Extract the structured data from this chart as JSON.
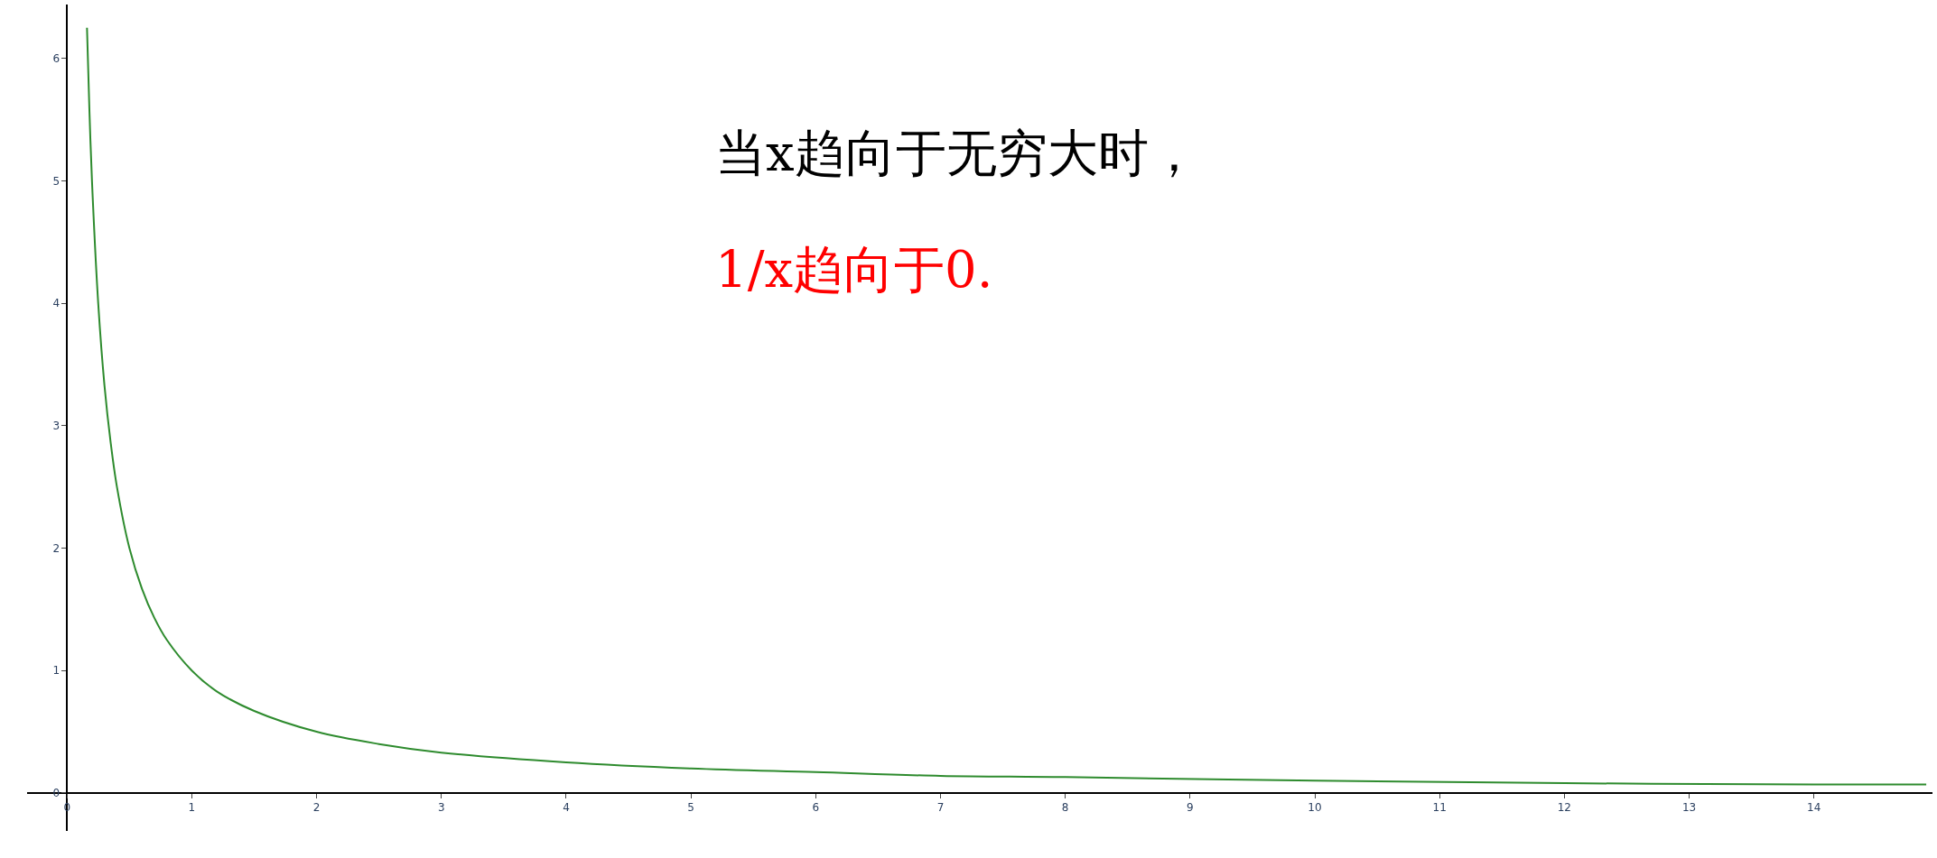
{
  "chart_data": {
    "type": "line",
    "x": [
      0.16,
      0.18,
      0.2,
      0.25,
      0.3,
      0.35,
      0.4,
      0.5,
      0.6,
      0.7,
      0.8,
      1,
      1.2,
      1.5,
      2,
      2.5,
      3,
      4,
      5,
      6,
      7,
      8,
      10,
      12,
      14,
      14.9
    ],
    "series": [
      {
        "color": "#2e8b2e",
        "values": [
          6.25,
          5.56,
          5,
          4,
          3.33,
          2.86,
          2.5,
          2,
          1.67,
          1.43,
          1.25,
          1,
          0.83,
          0.67,
          0.5,
          0.4,
          0.33,
          0.25,
          0.2,
          0.17,
          0.14,
          0.13,
          0.1,
          0.08,
          0.07,
          0.07
        ]
      }
    ],
    "xlim": [
      -0.32,
      14.95
    ],
    "ylim": [
      -0.31,
      6.44
    ],
    "xticks": [
      0,
      1,
      2,
      3,
      4,
      5,
      6,
      7,
      8,
      9,
      10,
      11,
      12,
      13,
      14
    ],
    "yticks": [
      0,
      1,
      2,
      3,
      4,
      5,
      6
    ],
    "annotations": [
      "当x趋向于无穷大时，",
      "1/x趋向于0."
    ],
    "legend": false
  }
}
